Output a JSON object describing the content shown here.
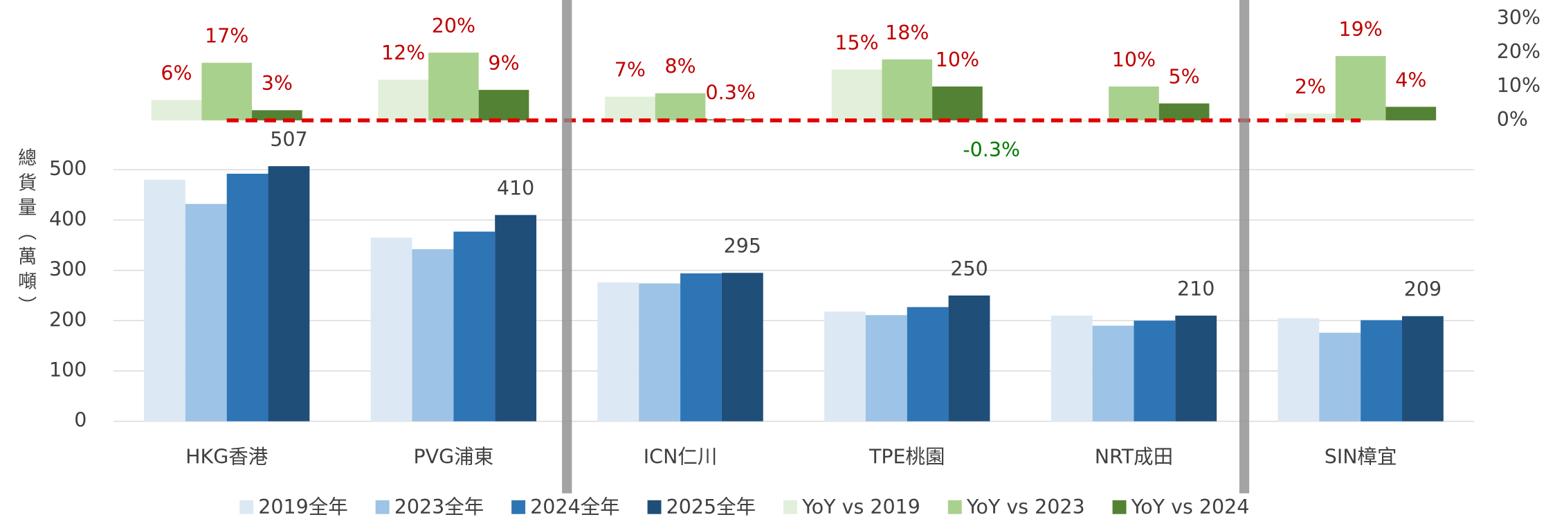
{
  "chart_data": {
    "type": "bar",
    "y_label": "總貨量（萬噸）",
    "categories": [
      "HKG香港",
      "PVG浦東",
      "ICN仁川",
      "TPE桃園",
      "NRT成田",
      "SIN樟宜"
    ],
    "ylim": [
      0,
      500
    ],
    "yticks": [
      0,
      100,
      200,
      300,
      400,
      500
    ],
    "y2lim": [
      0,
      30
    ],
    "y2ticks": [
      {
        "value": 0,
        "label": "0%"
      },
      {
        "value": 10,
        "label": "10%"
      },
      {
        "value": 20,
        "label": "20%"
      },
      {
        "value": 30,
        "label": "30%"
      }
    ],
    "grid": true,
    "legend": "bottom",
    "series": [
      {
        "name": "2019全年",
        "color": "#dde8f5",
        "values": [
          480,
          365,
          276,
          218,
          210,
          205
        ]
      },
      {
        "name": "2023全年",
        "color": "#9dc3e6",
        "values": [
          432,
          342,
          274,
          211,
          190,
          176
        ]
      },
      {
        "name": "2024全年",
        "color": "#2e75b6",
        "values": [
          492,
          377,
          294,
          227,
          200,
          201
        ]
      },
      {
        "name": "2025全年",
        "color": "#1f4e79",
        "values": [
          507,
          410,
          295,
          250,
          210,
          209
        ],
        "show_labels": true
      },
      {
        "name": "YoY vs 2019",
        "color": "#e2efda",
        "axis": "y2",
        "values": [
          6,
          12,
          7,
          15,
          -0.3,
          2
        ],
        "value_labels": [
          "6%",
          "12%",
          "7%",
          "15%",
          "-0.3%",
          "2%"
        ]
      },
      {
        "name": "YoY vs 2023",
        "color": "#a9d18e",
        "axis": "y2",
        "values": [
          17,
          20,
          8,
          18,
          10,
          19
        ],
        "value_labels": [
          "17%",
          "20%",
          "8%",
          "18%",
          "10%",
          "19%"
        ]
      },
      {
        "name": "YoY vs 2024",
        "color": "#548235",
        "axis": "y2",
        "values": [
          3,
          9,
          0.3,
          10,
          5,
          4
        ],
        "value_labels": [
          "3%",
          "9%",
          "0.3%",
          "10%",
          "5%",
          "4%"
        ]
      }
    ]
  }
}
